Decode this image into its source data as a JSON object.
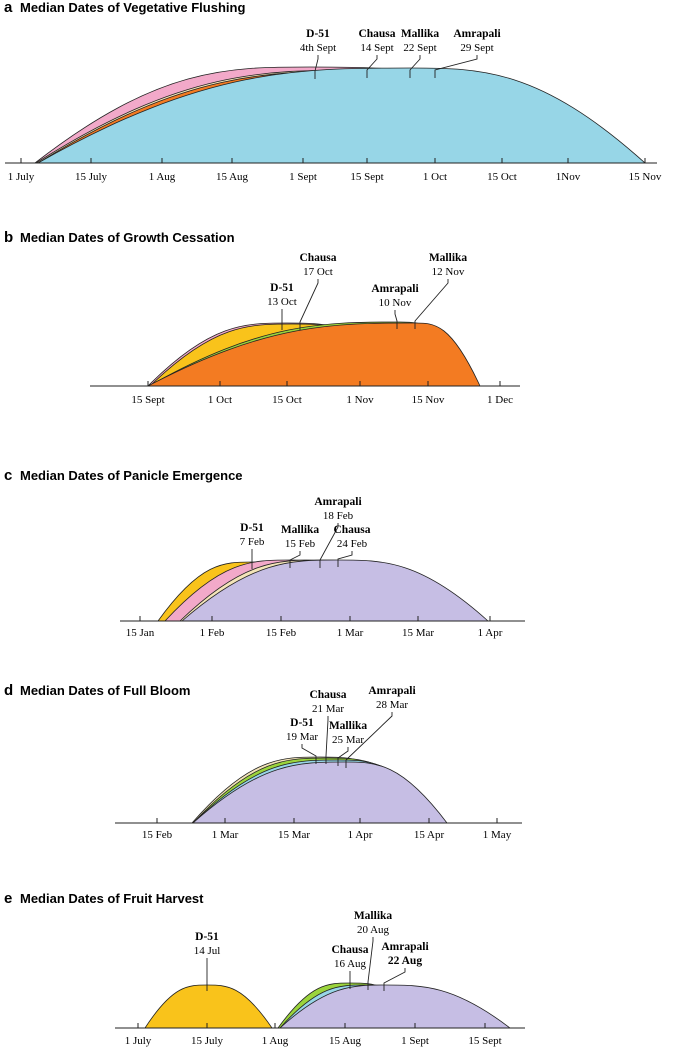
{
  "panels": [
    {
      "letter": "a",
      "title": "Median Dates of Vegetative Flushing",
      "ticks": [
        "1 July",
        "15 July",
        "1 Aug",
        "15 Aug",
        "1 Sept",
        "15 Sept",
        "1 Oct",
        "15 Oct",
        "1Nov",
        "15 Nov"
      ],
      "annotations": [
        {
          "name": "D-51",
          "date": "4th Sept"
        },
        {
          "name": "Chausa",
          "date": "14 Sept"
        },
        {
          "name": "Mallika",
          "date": "22 Sept"
        },
        {
          "name": "Amrapali",
          "date": "29 Sept"
        }
      ]
    },
    {
      "letter": "b",
      "title": "Median Dates of  Growth Cessation",
      "ticks": [
        "15 Sept",
        "1 Oct",
        "15 Oct",
        "1 Nov",
        "15 Nov",
        "1 Dec"
      ],
      "annotations": [
        {
          "name": "D-51",
          "date": "13 Oct"
        },
        {
          "name": "Chausa",
          "date": "17 Oct"
        },
        {
          "name": "Amrapali",
          "date": "10 Nov"
        },
        {
          "name": "Mallika",
          "date": "12 Nov"
        }
      ]
    },
    {
      "letter": "c",
      "title": "Median Dates of Panicle Emergence",
      "ticks": [
        "15 Jan",
        "1 Feb",
        "15 Feb",
        "1 Mar",
        "15 Mar",
        "1 Apr"
      ],
      "annotations": [
        {
          "name": "D-51",
          "date": "7 Feb"
        },
        {
          "name": "Mallika",
          "date": "15 Feb"
        },
        {
          "name": "Amrapali",
          "date": "18 Feb"
        },
        {
          "name": "Chausa",
          "date": "24 Feb"
        }
      ]
    },
    {
      "letter": "d",
      "title": "Median Dates of Full Bloom",
      "ticks": [
        "15 Feb",
        "1 Mar",
        "15 Mar",
        "1 Apr",
        "15 Apr",
        "1 May"
      ],
      "annotations": [
        {
          "name": "D-51",
          "date": "19 Mar"
        },
        {
          "name": "Chausa",
          "date": "21 Mar"
        },
        {
          "name": "Mallika",
          "date": "25 Mar"
        },
        {
          "name": "Amrapali",
          "date": "28 Mar"
        }
      ]
    },
    {
      "letter": "e",
      "title": "Median Dates of Fruit Harvest",
      "ticks": [
        "1 July",
        "15 July",
        "1 Aug",
        "15 Aug",
        "1 Sept",
        "15 Sept"
      ],
      "annotations": [
        {
          "name": "D-51",
          "date": "14 Jul"
        },
        {
          "name": "Chausa",
          "date": "16 Aug"
        },
        {
          "name": "Mallika",
          "date": "20 Aug"
        },
        {
          "name": "Amrapali",
          "date": "22 Aug"
        }
      ]
    }
  ]
}
